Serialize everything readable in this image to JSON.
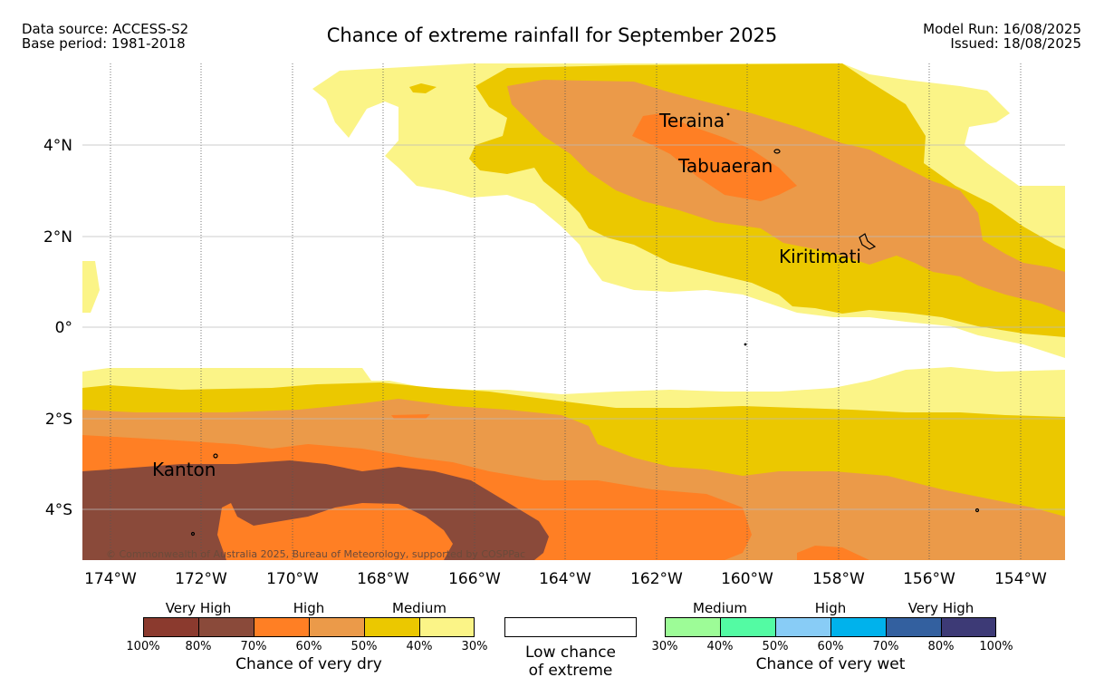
{
  "header": {
    "data_source": "Data source: ACCESS-S2",
    "base_period": "Base period: 1981-2018",
    "title": "Chance of extreme rainfall for September 2025",
    "model_run": "Model Run: 16/08/2025",
    "issued": "Issued: 18/08/2025"
  },
  "map": {
    "lat_labels": [
      "4°N",
      "2°N",
      "0°",
      "2°S",
      "4°S"
    ],
    "lon_labels": [
      "174°W",
      "172°W",
      "170°W",
      "168°W",
      "166°W",
      "164°W",
      "162°W",
      "160°W",
      "158°W",
      "156°W",
      "154°W"
    ],
    "places": [
      "Teraina",
      "Tabuaeran",
      "Kiritimati",
      "Kanton"
    ],
    "copyright": "© Commonwealth of Australia 2025, Bureau of Meteorology, supported by COSPPac",
    "colors": {
      "dry_very_high_1": "#8b3a2e",
      "dry_very_high_2": "#8a4a3a",
      "dry_high_1": "#ff7f24",
      "dry_high_2": "#eb9a49",
      "dry_medium_1": "#ebc800",
      "dry_medium_2": "#fbf487"
    }
  },
  "legend": {
    "dry": {
      "groups": [
        "Very High",
        "High",
        "Medium"
      ],
      "ticks": [
        "100%",
        "80%",
        "70%",
        "60%",
        "50%",
        "40%",
        "30%"
      ],
      "caption": "Chance of very dry",
      "colors": [
        "#8b3a2e",
        "#8a4a3a",
        "#ff7f24",
        "#eb9a49",
        "#ebc800",
        "#fbf487"
      ]
    },
    "low": {
      "caption_line1": "Low chance",
      "caption_line2": "of extreme"
    },
    "wet": {
      "groups": [
        "Medium",
        "High",
        "Very High"
      ],
      "ticks": [
        "30%",
        "40%",
        "50%",
        "60%",
        "70%",
        "80%",
        "100%"
      ],
      "caption": "Chance of very wet",
      "colors": [
        "#9dfc97",
        "#53fba3",
        "#88ccf6",
        "#00b2ec",
        "#33609f",
        "#3d3a76"
      ]
    }
  }
}
